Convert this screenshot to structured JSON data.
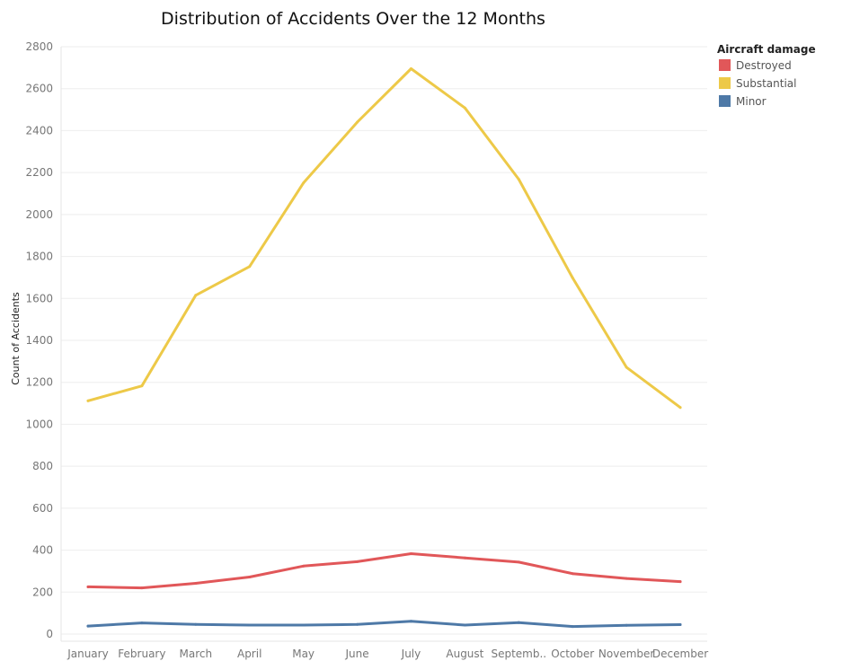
{
  "chart_data": {
    "type": "line",
    "title": "Distribution of Accidents Over the 12 Months",
    "xlabel": "",
    "ylabel": "Count of Accidents",
    "ylim": [
      0,
      2800
    ],
    "yticks": [
      0,
      200,
      400,
      600,
      800,
      1000,
      1200,
      1400,
      1600,
      1800,
      2000,
      2200,
      2400,
      2600,
      2800
    ],
    "grid": "horizontal",
    "legend_position": "top-right",
    "legend_title": "Aircraft damage",
    "categories": [
      "January",
      "February",
      "March",
      "April",
      "May",
      "June",
      "July",
      "August",
      "Septemb..",
      "October",
      "November",
      "December"
    ],
    "series": [
      {
        "name": "Destroyed",
        "color": "#e15759",
        "values": [
          225,
          220,
          242,
          272,
          324,
          345,
          383,
          363,
          343,
          288,
          265,
          250
        ]
      },
      {
        "name": "Substantial",
        "color": "#edc948",
        "values": [
          1112,
          1183,
          1615,
          1752,
          2150,
          2440,
          2695,
          2508,
          2168,
          1698,
          1272,
          1080
        ]
      },
      {
        "name": "Minor",
        "color": "#4e79a7",
        "values": [
          38,
          53,
          46,
          43,
          43,
          46,
          61,
          43,
          55,
          36,
          42,
          45
        ]
      }
    ]
  }
}
